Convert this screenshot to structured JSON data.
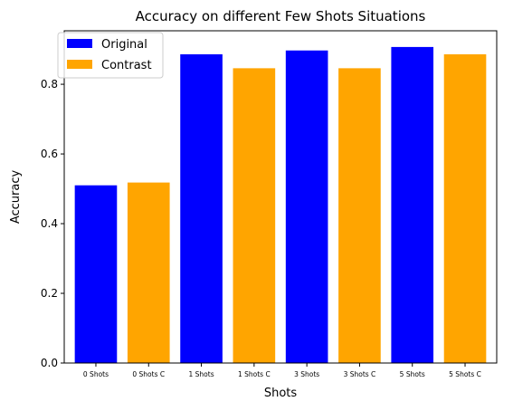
{
  "chart_data": {
    "type": "bar",
    "title": "Accuracy on different Few Shots Situations",
    "xlabel": "Shots",
    "ylabel": "Accuracy",
    "categories": [
      "0 Shots",
      "0 Shots C",
      "1 Shots",
      "1 Shots C",
      "3 Shots",
      "3 Shots C",
      "5 Shots",
      "5 Shots C"
    ],
    "values": [
      0.51,
      0.518,
      0.886,
      0.846,
      0.897,
      0.846,
      0.907,
      0.886
    ],
    "bar_series": [
      "Original",
      "Contrast",
      "Original",
      "Contrast",
      "Original",
      "Contrast",
      "Original",
      "Contrast"
    ],
    "series": [
      {
        "name": "Original",
        "color": "#0000ff"
      },
      {
        "name": "Contrast",
        "color": "#ffa500"
      }
    ],
    "ylim": [
      0,
      0.9535
    ],
    "yticks": [
      "0.0",
      "0.2",
      "0.4",
      "0.6",
      "0.8"
    ],
    "legend_position": "top-left",
    "grid": false
  }
}
